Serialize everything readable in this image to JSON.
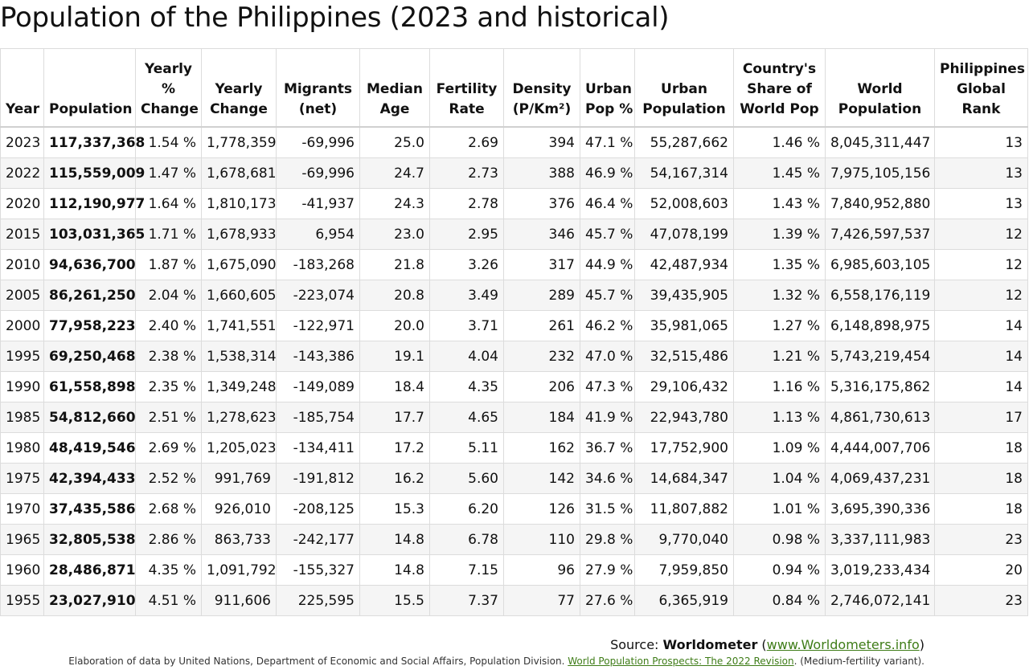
{
  "title": "Population of the Philippines (2023 and historical)",
  "headers": {
    "year": "Year",
    "population": "Population",
    "yearly_pct_1": "Yearly",
    "yearly_pct_2": "%",
    "yearly_pct_3": "Change",
    "yearly_change_1": "Yearly",
    "yearly_change_2": "Change",
    "migrants_1": "Migrants",
    "migrants_2": "(net)",
    "median_1": "Median",
    "median_2": "Age",
    "fertility_1": "Fertility",
    "fertility_2": "Rate",
    "density_1": "Density",
    "density_2": "(P/Km²)",
    "urban_pct_1": "Urban",
    "urban_pct_2": "Pop %",
    "urban_pop_1": "Urban",
    "urban_pop_2": "Population",
    "share_1": "Country's",
    "share_2": "Share of",
    "share_3": "World Pop",
    "world_1": "World",
    "world_2": "Population",
    "rank_1": "Philippines",
    "rank_2": "Global",
    "rank_3": "Rank"
  },
  "rows": [
    [
      "2023",
      "117,337,368",
      "1.54 %",
      "1,778,359",
      "-69,996",
      "25.0",
      "2.69",
      "394",
      "47.1 %",
      "55,287,662",
      "1.46 %",
      "8,045,311,447",
      "13"
    ],
    [
      "2022",
      "115,559,009",
      "1.47 %",
      "1,678,681",
      "-69,996",
      "24.7",
      "2.73",
      "388",
      "46.9 %",
      "54,167,314",
      "1.45 %",
      "7,975,105,156",
      "13"
    ],
    [
      "2020",
      "112,190,977",
      "1.64 %",
      "1,810,173",
      "-41,937",
      "24.3",
      "2.78",
      "376",
      "46.4 %",
      "52,008,603",
      "1.43 %",
      "7,840,952,880",
      "13"
    ],
    [
      "2015",
      "103,031,365",
      "1.71 %",
      "1,678,933",
      "6,954",
      "23.0",
      "2.95",
      "346",
      "45.7 %",
      "47,078,199",
      "1.39 %",
      "7,426,597,537",
      "12"
    ],
    [
      "2010",
      "94,636,700",
      "1.87 %",
      "1,675,090",
      "-183,268",
      "21.8",
      "3.26",
      "317",
      "44.9 %",
      "42,487,934",
      "1.35 %",
      "6,985,603,105",
      "12"
    ],
    [
      "2005",
      "86,261,250",
      "2.04 %",
      "1,660,605",
      "-223,074",
      "20.8",
      "3.49",
      "289",
      "45.7 %",
      "39,435,905",
      "1.32 %",
      "6,558,176,119",
      "12"
    ],
    [
      "2000",
      "77,958,223",
      "2.40 %",
      "1,741,551",
      "-122,971",
      "20.0",
      "3.71",
      "261",
      "46.2 %",
      "35,981,065",
      "1.27 %",
      "6,148,898,975",
      "14"
    ],
    [
      "1995",
      "69,250,468",
      "2.38 %",
      "1,538,314",
      "-143,386",
      "19.1",
      "4.04",
      "232",
      "47.0 %",
      "32,515,486",
      "1.21 %",
      "5,743,219,454",
      "14"
    ],
    [
      "1990",
      "61,558,898",
      "2.35 %",
      "1,349,248",
      "-149,089",
      "18.4",
      "4.35",
      "206",
      "47.3 %",
      "29,106,432",
      "1.16 %",
      "5,316,175,862",
      "14"
    ],
    [
      "1985",
      "54,812,660",
      "2.51 %",
      "1,278,623",
      "-185,754",
      "17.7",
      "4.65",
      "184",
      "41.9 %",
      "22,943,780",
      "1.13 %",
      "4,861,730,613",
      "17"
    ],
    [
      "1980",
      "48,419,546",
      "2.69 %",
      "1,205,023",
      "-134,411",
      "17.2",
      "5.11",
      "162",
      "36.7 %",
      "17,752,900",
      "1.09 %",
      "4,444,007,706",
      "18"
    ],
    [
      "1975",
      "42,394,433",
      "2.52 %",
      "991,769",
      "-191,812",
      "16.2",
      "5.60",
      "142",
      "34.6 %",
      "14,684,347",
      "1.04 %",
      "4,069,437,231",
      "18"
    ],
    [
      "1970",
      "37,435,586",
      "2.68 %",
      "926,010",
      "-208,125",
      "15.3",
      "6.20",
      "126",
      "31.5 %",
      "11,807,882",
      "1.01 %",
      "3,695,390,336",
      "18"
    ],
    [
      "1965",
      "32,805,538",
      "2.86 %",
      "863,733",
      "-242,177",
      "14.8",
      "6.78",
      "110",
      "29.8 %",
      "9,770,040",
      "0.98 %",
      "3,337,111,983",
      "23"
    ],
    [
      "1960",
      "28,486,871",
      "4.35 %",
      "1,091,792",
      "-155,327",
      "14.8",
      "7.15",
      "96",
      "27.9 %",
      "7,959,850",
      "0.94 %",
      "3,019,233,434",
      "20"
    ],
    [
      "1955",
      "23,027,910",
      "4.51 %",
      "911,606",
      "225,595",
      "15.5",
      "7.37",
      "77",
      "27.6 %",
      "6,365,919",
      "0.84 %",
      "2,746,072,141",
      "23"
    ]
  ],
  "source": {
    "prefix": "Source: ",
    "name": "Worldometer",
    "open": " (",
    "link": "www.Worldometers.info",
    "close": ")"
  },
  "note": {
    "text": "Elaboration of data by United Nations, Department of Economic and Social Affairs, Population Division. ",
    "link": "World Population Prospects: The 2022 Revision",
    "suffix": ". (Medium-fertility variant)."
  }
}
